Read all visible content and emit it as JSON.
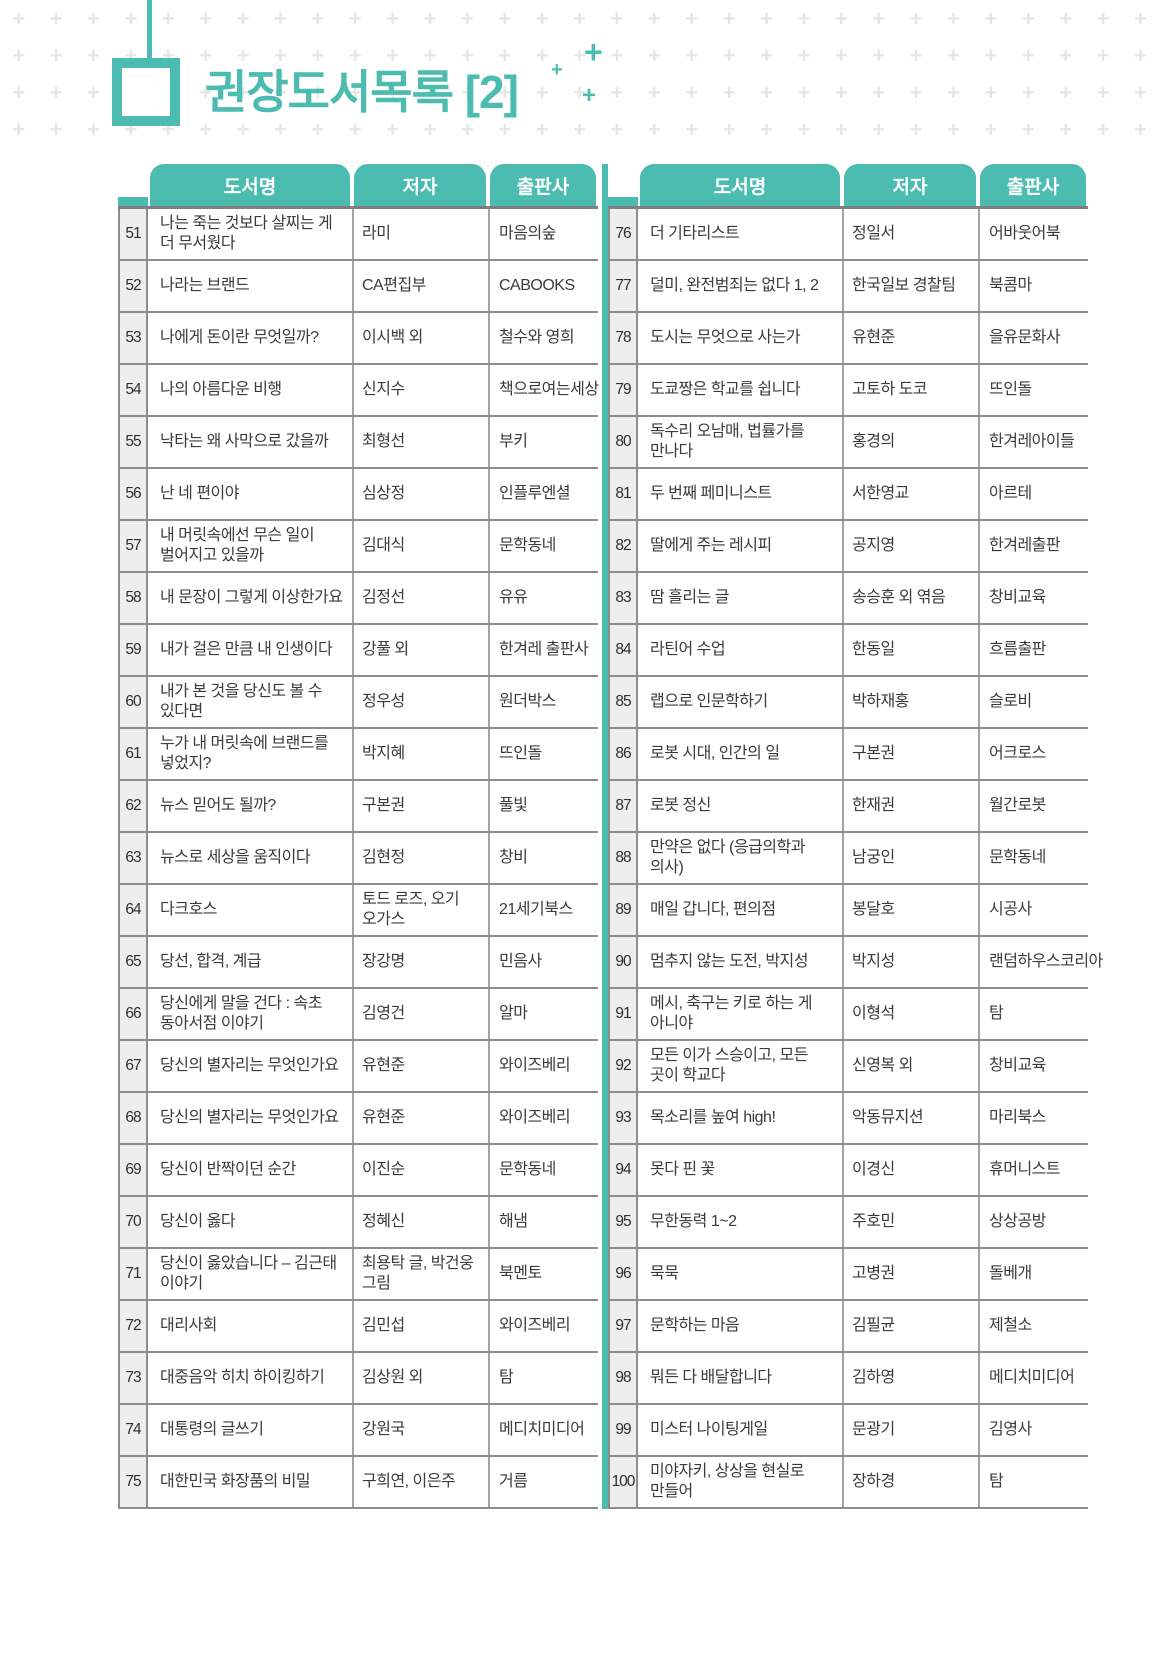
{
  "page_title": "권장도서목록 [2]",
  "accent_color": "#4cbcb1",
  "table_headers": {
    "title": "도서명",
    "author": "저자",
    "publisher": "출판사"
  },
  "left_rows": [
    {
      "no": "51",
      "title": "나는 죽는 것보다 살찌는 게 더 무서웠다",
      "author": "라미",
      "publisher": "마음의숲"
    },
    {
      "no": "52",
      "title": "나라는 브랜드",
      "author": "CA편집부",
      "publisher": "CABOOKS"
    },
    {
      "no": "53",
      "title": "나에게 돈이란 무엇일까?",
      "author": "이시백 외",
      "publisher": "철수와 영희"
    },
    {
      "no": "54",
      "title": "나의 아름다운 비행",
      "author": "신지수",
      "publisher": "책으로여는세상"
    },
    {
      "no": "55",
      "title": "낙타는 왜 사막으로 갔을까",
      "author": "최형선",
      "publisher": "부키"
    },
    {
      "no": "56",
      "title": "난 네 편이야",
      "author": "심상정",
      "publisher": "인플루엔셜"
    },
    {
      "no": "57",
      "title": "내 머릿속에선 무슨 일이 벌어지고 있을까",
      "author": "김대식",
      "publisher": "문학동네"
    },
    {
      "no": "58",
      "title": "내 문장이 그렇게 이상한가요",
      "author": "김정선",
      "publisher": "유유"
    },
    {
      "no": "59",
      "title": "내가 걸은 만큼 내 인생이다",
      "author": "강풀 외",
      "publisher": "한겨레 출판사"
    },
    {
      "no": "60",
      "title": "내가 본 것을 당신도 볼 수 있다면",
      "author": "정우성",
      "publisher": "원더박스"
    },
    {
      "no": "61",
      "title": "누가 내 머릿속에 브랜드를 넣었지?",
      "author": "박지혜",
      "publisher": "뜨인돌"
    },
    {
      "no": "62",
      "title": "뉴스 믿어도 될까?",
      "author": "구본권",
      "publisher": "풀빛"
    },
    {
      "no": "63",
      "title": "뉴스로 세상을 움직이다",
      "author": "김현정",
      "publisher": "창비"
    },
    {
      "no": "64",
      "title": "다크호스",
      "author": "토드 로즈, 오기 오가스",
      "publisher": "21세기북스"
    },
    {
      "no": "65",
      "title": "당선, 합격, 계급",
      "author": "장강명",
      "publisher": "민음사"
    },
    {
      "no": "66",
      "title": "당신에게 말을 건다 : 속초 동아서점 이야기",
      "author": "김영건",
      "publisher": "알마"
    },
    {
      "no": "67",
      "title": "당신의 별자리는 무엇인가요",
      "author": "유현준",
      "publisher": "와이즈베리"
    },
    {
      "no": "68",
      "title": "당신의 별자리는 무엇인가요",
      "author": "유현준",
      "publisher": "와이즈베리"
    },
    {
      "no": "69",
      "title": "당신이 반짝이던 순간",
      "author": "이진순",
      "publisher": "문학동네"
    },
    {
      "no": "70",
      "title": "당신이 옳다",
      "author": "정혜신",
      "publisher": "해냄"
    },
    {
      "no": "71",
      "title": "당신이 옳았습니다 – 김근태 이야기",
      "author": "최용탁 글, 박건웅 그림",
      "publisher": "북멘토"
    },
    {
      "no": "72",
      "title": "대리사회",
      "author": "김민섭",
      "publisher": "와이즈베리"
    },
    {
      "no": "73",
      "title": "대중음악 히치 하이킹하기",
      "author": "김상원 외",
      "publisher": "탐"
    },
    {
      "no": "74",
      "title": "대통령의 글쓰기",
      "author": "강원국",
      "publisher": "메디치미디어"
    },
    {
      "no": "75",
      "title": "대한민국 화장품의 비밀",
      "author": "구희연, 이은주",
      "publisher": "거름"
    }
  ],
  "right_rows": [
    {
      "no": "76",
      "title": "더 기타리스트",
      "author": "정일서",
      "publisher": "어바웃어북"
    },
    {
      "no": "77",
      "title": "덜미, 완전범죄는 없다 1, 2",
      "author": "한국일보 경찰팀",
      "publisher": "북콤마"
    },
    {
      "no": "78",
      "title": "도시는 무엇으로 사는가",
      "author": "유현준",
      "publisher": "을유문화사"
    },
    {
      "no": "79",
      "title": "도쿄짱은 학교를 쉽니다",
      "author": "고토하 도코",
      "publisher": "뜨인돌"
    },
    {
      "no": "80",
      "title": "독수리 오남매, 법률가를 만나다",
      "author": "홍경의",
      "publisher": "한겨레아이들"
    },
    {
      "no": "81",
      "title": "두 번째 페미니스트",
      "author": "서한영교",
      "publisher": "아르테"
    },
    {
      "no": "82",
      "title": "딸에게 주는 레시피",
      "author": "공지영",
      "publisher": "한겨레출판"
    },
    {
      "no": "83",
      "title": "땀 흘리는 글",
      "author": "송승훈 외 엮음",
      "publisher": "창비교육"
    },
    {
      "no": "84",
      "title": "라틴어 수업",
      "author": "한동일",
      "publisher": "흐름출판"
    },
    {
      "no": "85",
      "title": "랩으로 인문학하기",
      "author": "박하재홍",
      "publisher": "슬로비"
    },
    {
      "no": "86",
      "title": "로봇 시대, 인간의 일",
      "author": "구본권",
      "publisher": "어크로스"
    },
    {
      "no": "87",
      "title": "로봇 정신",
      "author": "한재권",
      "publisher": "월간로봇"
    },
    {
      "no": "88",
      "title": "만약은 없다 (응급의학과 의사)",
      "author": "남궁인",
      "publisher": "문학동네"
    },
    {
      "no": "89",
      "title": "매일 갑니다, 편의점",
      "author": "봉달호",
      "publisher": "시공사"
    },
    {
      "no": "90",
      "title": "멈추지 않는 도전, 박지성",
      "author": "박지성",
      "publisher": "랜덤하우스코리아"
    },
    {
      "no": "91",
      "title": "메시, 축구는 키로 하는 게 아니야",
      "author": "이형석",
      "publisher": "탐"
    },
    {
      "no": "92",
      "title": "모든 이가 스승이고, 모든 곳이 학교다",
      "author": "신영복 외",
      "publisher": "창비교육"
    },
    {
      "no": "93",
      "title": "목소리를 높여 high!",
      "author": "악동뮤지션",
      "publisher": "마리북스"
    },
    {
      "no": "94",
      "title": "못다 핀 꽃",
      "author": "이경신",
      "publisher": "휴머니스트"
    },
    {
      "no": "95",
      "title": "무한동력 1~2",
      "author": "주호민",
      "publisher": "상상공방"
    },
    {
      "no": "96",
      "title": "묵묵",
      "author": "고병권",
      "publisher": "돌베개"
    },
    {
      "no": "97",
      "title": "문학하는 마음",
      "author": "김필균",
      "publisher": "제철소"
    },
    {
      "no": "98",
      "title": "뭐든 다 배달합니다",
      "author": "김하영",
      "publisher": "메디치미디어"
    },
    {
      "no": "99",
      "title": "미스터 나이팅게일",
      "author": "문광기",
      "publisher": "김영사"
    },
    {
      "no": "100",
      "title": "미야자키, 상상을 현실로 만들어",
      "author": "장하경",
      "publisher": "탐"
    }
  ]
}
